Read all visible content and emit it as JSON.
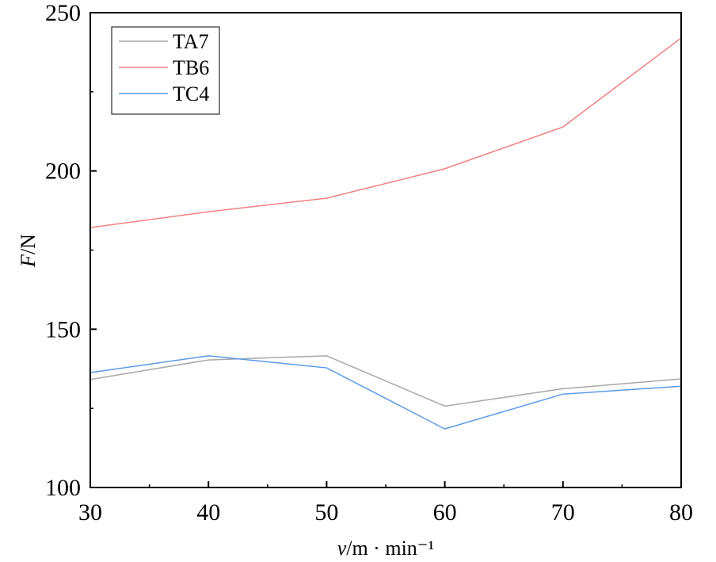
{
  "chart_data": {
    "type": "line",
    "title": "",
    "xlabel": "v/m · min⁻¹",
    "xlabel_italic": "v",
    "xlabel_rest": "/m · min⁻¹",
    "ylabel_italic": "F",
    "ylabel_rest": "/N",
    "xlim": [
      30,
      80
    ],
    "ylim": [
      100,
      250
    ],
    "x_ticks": [
      30,
      40,
      50,
      60,
      70,
      80
    ],
    "y_ticks": [
      100,
      150,
      200,
      250
    ],
    "grid": false,
    "legend_position": "top-left",
    "x": [
      30,
      40,
      50,
      60,
      70,
      80
    ],
    "series": [
      {
        "name": "TA7",
        "color": "#a8a8a8",
        "values": [
          134.1,
          140.3,
          141.6,
          125.7,
          131.2,
          134.3
        ]
      },
      {
        "name": "TB6",
        "color": "#f08080",
        "values": [
          182.1,
          187.1,
          191.4,
          200.7,
          213.9,
          242.0
        ]
      },
      {
        "name": "TC4",
        "color": "#5a9ae6",
        "values": [
          136.3,
          141.6,
          137.8,
          118.5,
          129.5,
          132.0
        ]
      }
    ]
  }
}
